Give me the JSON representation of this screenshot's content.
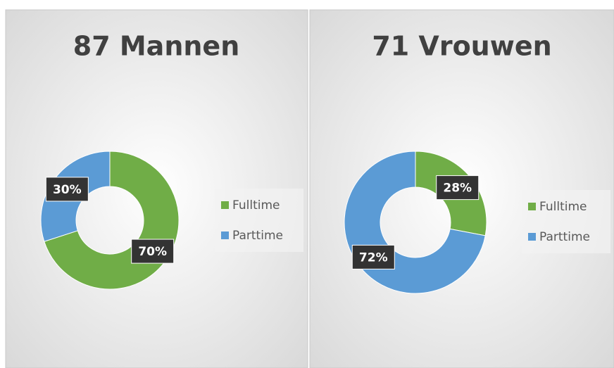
{
  "chart_data": [
    {
      "type": "pie",
      "donut": true,
      "title": "87 Mannen",
      "categories": [
        "Fulltime",
        "Parttime"
      ],
      "values": [
        70,
        30
      ],
      "value_labels": [
        "70%",
        "30%"
      ],
      "colors": [
        "#70ad47",
        "#5b9bd5"
      ]
    },
    {
      "type": "pie",
      "donut": true,
      "title": "71 Vrouwen",
      "categories": [
        "Fulltime",
        "Parttime"
      ],
      "values": [
        28,
        72
      ],
      "value_labels": [
        "28%",
        "72%"
      ],
      "colors": [
        "#70ad47",
        "#5b9bd5"
      ]
    }
  ]
}
